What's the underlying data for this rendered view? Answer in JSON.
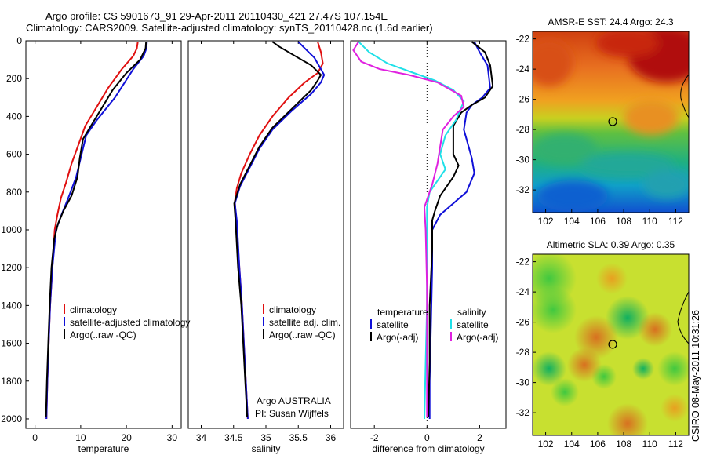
{
  "header": {
    "line1": "Argo profile: CS 5901673_91 29-Apr-2011 20110430_421 27.47S 107.154E",
    "line2": "Climatology: CARS2009. Satellite-adjusted climatology: synTS_20110428.nc (1.6d earlier)"
  },
  "side_label": "CSIRO 08-May-2011 10:31:26",
  "colors": {
    "climatology": "#e01010",
    "satellite": "#1010d8",
    "argo": "#000000",
    "satellite_diff": "#20e0e8",
    "argo_diff": "#e020e0"
  },
  "chart_data": [
    {
      "type": "line",
      "xlabel": "temperature",
      "ylabel": "",
      "xlim": [
        -2,
        32
      ],
      "ylim": [
        2050,
        0
      ],
      "xticks": [
        0,
        10,
        20,
        30
      ],
      "yticks": [
        0,
        200,
        400,
        600,
        800,
        1000,
        1200,
        1400,
        1600,
        1800,
        2000
      ],
      "legend": [
        "climatology",
        "satellite-adjusted climatology",
        "Argo(..raw -QC)"
      ],
      "legend_position": "bottom-right",
      "series": [
        {
          "name": "climatology",
          "color": "#e01010",
          "points": [
            [
              22.5,
              5
            ],
            [
              22.3,
              40
            ],
            [
              21.5,
              80
            ],
            [
              19,
              150
            ],
            [
              16,
              250
            ],
            [
              13.5,
              350
            ],
            [
              11,
              450
            ],
            [
              9.5,
              550
            ],
            [
              8,
              650
            ],
            [
              6.8,
              750
            ],
            [
              5.7,
              830
            ],
            [
              4.9,
              920
            ],
            [
              4.3,
              1000
            ],
            [
              3.8,
              1200
            ],
            [
              3.3,
              1400
            ],
            [
              3,
              1600
            ],
            [
              2.7,
              1800
            ],
            [
              2.5,
              2000
            ]
          ]
        },
        {
          "name": "satellite-adjusted climatology",
          "color": "#1010d8",
          "points": [
            [
              24.5,
              5
            ],
            [
              24.4,
              40
            ],
            [
              23.8,
              80
            ],
            [
              21.5,
              150
            ],
            [
              17.5,
              300
            ],
            [
              13.5,
              420
            ],
            [
              11.2,
              500
            ],
            [
              10,
              620
            ],
            [
              9,
              720
            ],
            [
              7.3,
              830
            ],
            [
              5.8,
              920
            ],
            [
              4.6,
              1000
            ],
            [
              3.8,
              1200
            ],
            [
              3.3,
              1400
            ],
            [
              3,
              1600
            ],
            [
              2.7,
              1800
            ],
            [
              2.5,
              2000
            ]
          ]
        },
        {
          "name": "Argo(..raw -QC)",
          "color": "#000000",
          "points": [
            [
              24.3,
              5
            ],
            [
              24.2,
              40
            ],
            [
              23,
              100
            ],
            [
              20,
              170
            ],
            [
              17,
              260
            ],
            [
              14.5,
              360
            ],
            [
              12,
              460
            ],
            [
              10.5,
              520
            ],
            [
              9.8,
              620
            ],
            [
              9.3,
              720
            ],
            [
              8,
              820
            ],
            [
              6.2,
              900
            ],
            [
              5,
              970
            ],
            [
              4.2,
              1050
            ],
            [
              3.6,
              1200
            ],
            [
              3.2,
              1400
            ],
            [
              2.9,
              1600
            ],
            [
              2.6,
              1800
            ],
            [
              2.4,
              1990
            ]
          ]
        }
      ]
    },
    {
      "type": "line",
      "xlabel": "salinity",
      "ylabel": "",
      "xlim": [
        33.8,
        36.2
      ],
      "ylim": [
        2050,
        0
      ],
      "xticks": [
        34,
        34.5,
        35,
        35.5,
        36
      ],
      "yticks": [],
      "legend": [
        "climatology",
        "satellite adj. clim.",
        "Argo(..raw -QC)"
      ],
      "legend_position": "bottom-right",
      "annotations": [
        "Argo AUSTRALIA",
        "PI: Susan Wijffels"
      ],
      "series": [
        {
          "name": "climatology",
          "color": "#e01010",
          "points": [
            [
              35.8,
              5
            ],
            [
              35.85,
              60
            ],
            [
              35.88,
              120
            ],
            [
              35.8,
              170
            ],
            [
              35.6,
              220
            ],
            [
              35.35,
              300
            ],
            [
              35.1,
              400
            ],
            [
              34.9,
              500
            ],
            [
              34.75,
              600
            ],
            [
              34.62,
              700
            ],
            [
              34.55,
              780
            ],
            [
              34.52,
              850
            ],
            [
              34.53,
              900
            ],
            [
              34.55,
              1000
            ],
            [
              34.59,
              1200
            ],
            [
              34.63,
              1400
            ],
            [
              34.66,
              1600
            ],
            [
              34.69,
              1800
            ],
            [
              34.72,
              2000
            ]
          ]
        },
        {
          "name": "satellite adj. clim.",
          "color": "#1010d8",
          "points": [
            [
              35.5,
              5
            ],
            [
              35.6,
              40
            ],
            [
              35.75,
              90
            ],
            [
              35.85,
              150
            ],
            [
              35.9,
              180
            ],
            [
              35.85,
              220
            ],
            [
              35.7,
              280
            ],
            [
              35.4,
              370
            ],
            [
              35.1,
              470
            ],
            [
              34.9,
              570
            ],
            [
              34.75,
              670
            ],
            [
              34.6,
              770
            ],
            [
              34.52,
              860
            ],
            [
              34.55,
              950
            ],
            [
              34.59,
              1200
            ],
            [
              34.63,
              1400
            ],
            [
              34.66,
              1600
            ],
            [
              34.69,
              1800
            ],
            [
              34.72,
              2000
            ]
          ]
        },
        {
          "name": "Argo(..raw -QC)",
          "color": "#000000",
          "points": [
            [
              35.1,
              5
            ],
            [
              35.2,
              30
            ],
            [
              35.45,
              80
            ],
            [
              35.7,
              130
            ],
            [
              35.85,
              180
            ],
            [
              35.8,
              210
            ],
            [
              35.7,
              260
            ],
            [
              35.4,
              360
            ],
            [
              35.1,
              460
            ],
            [
              34.9,
              560
            ],
            [
              34.75,
              660
            ],
            [
              34.6,
              760
            ],
            [
              34.51,
              860
            ],
            [
              34.53,
              950
            ],
            [
              34.57,
              1200
            ],
            [
              34.62,
              1400
            ],
            [
              34.65,
              1600
            ],
            [
              34.68,
              1800
            ],
            [
              34.71,
              1990
            ]
          ]
        }
      ]
    },
    {
      "type": "line",
      "xlabel": "difference from climatology",
      "ylabel": "",
      "xlim": [
        -2.9,
        3
      ],
      "ylim": [
        2050,
        0
      ],
      "xticks": [
        -2,
        0,
        2
      ],
      "yticks": [],
      "legend": [
        "temperature",
        "satellite",
        "Argo(-adj)",
        "salinity",
        "satellite",
        "Argo(-adj)"
      ],
      "legend_position": "bottom",
      "series": [
        {
          "name": "temperature satellite",
          "color": "#1010d8",
          "points": [
            [
              1.8,
              5
            ],
            [
              2.0,
              60
            ],
            [
              2.3,
              130
            ],
            [
              2.4,
              250
            ],
            [
              2.1,
              300
            ],
            [
              1.7,
              340
            ],
            [
              1.5,
              380
            ],
            [
              1.4,
              470
            ],
            [
              1.5,
              520
            ],
            [
              1.7,
              620
            ],
            [
              1.8,
              700
            ],
            [
              1.5,
              800
            ],
            [
              1.0,
              860
            ],
            [
              0.5,
              920
            ],
            [
              0.2,
              1000
            ],
            [
              0.2,
              1200
            ],
            [
              0.15,
              1500
            ],
            [
              0.1,
              1800
            ],
            [
              0.1,
              2000
            ]
          ]
        },
        {
          "name": "temperature Argo(-adj)",
          "color": "#000000",
          "points": [
            [
              1.7,
              5
            ],
            [
              2.2,
              60
            ],
            [
              2.4,
              130
            ],
            [
              2.5,
              240
            ],
            [
              2.2,
              300
            ],
            [
              1.7,
              340
            ],
            [
              1.3,
              380
            ],
            [
              1.0,
              450
            ],
            [
              1.0,
              600
            ],
            [
              1.2,
              660
            ],
            [
              1.0,
              720
            ],
            [
              0.5,
              820
            ],
            [
              0.3,
              900
            ],
            [
              0.2,
              950
            ],
            [
              0.2,
              1100
            ],
            [
              0.1,
              1400
            ],
            [
              0.1,
              1700
            ],
            [
              0.05,
              1990
            ]
          ]
        },
        {
          "name": "salinity satellite",
          "color": "#20e0e8",
          "points": [
            [
              -2.6,
              5
            ],
            [
              -2.2,
              60
            ],
            [
              -1.5,
              120
            ],
            [
              -0.5,
              170
            ],
            [
              0.3,
              210
            ],
            [
              1.0,
              260
            ],
            [
              1.4,
              320
            ],
            [
              1.1,
              420
            ],
            [
              0.7,
              500
            ],
            [
              0.5,
              600
            ],
            [
              0.7,
              680
            ],
            [
              0.4,
              740
            ],
            [
              0.1,
              800
            ],
            [
              0.0,
              880
            ],
            [
              0.0,
              1100
            ],
            [
              0.0,
              1400
            ],
            [
              -0.05,
              1700
            ],
            [
              -0.1,
              2000
            ]
          ]
        },
        {
          "name": "salinity Argo(-adj)",
          "color": "#e020e0",
          "points": [
            [
              -2.6,
              5
            ],
            [
              -2.8,
              50
            ],
            [
              -2.5,
              110
            ],
            [
              -1.8,
              150
            ],
            [
              -0.7,
              180
            ],
            [
              0.4,
              220
            ],
            [
              1.3,
              290
            ],
            [
              1.4,
              350
            ],
            [
              1.0,
              400
            ],
            [
              0.6,
              470
            ],
            [
              0.5,
              560
            ],
            [
              0.4,
              650
            ],
            [
              0.2,
              760
            ],
            [
              -0.1,
              880
            ],
            [
              -0.05,
              1000
            ],
            [
              0.0,
              1300
            ],
            [
              0.0,
              1600
            ],
            [
              0.0,
              1990
            ]
          ]
        }
      ]
    }
  ],
  "maps": [
    {
      "title": "AMSR-E SST: 24.4 Argo: 24.3",
      "xticks": [
        102,
        104,
        106,
        108,
        110,
        112
      ],
      "yticks": [
        -22,
        -24,
        -26,
        -28,
        -30,
        -32
      ],
      "xlim": [
        101,
        113
      ],
      "ylim": [
        -33.5,
        -21.5
      ],
      "marker": [
        107.154,
        -27.47
      ]
    },
    {
      "title": "Altimetric SLA: 0.39 Argo: 0.35",
      "xticks": [
        102,
        104,
        106,
        108,
        110,
        112
      ],
      "yticks": [
        -22,
        -24,
        -26,
        -28,
        -30,
        -32
      ],
      "xlim": [
        101,
        113
      ],
      "ylim": [
        -33.5,
        -21.5
      ],
      "marker": [
        107.154,
        -27.47
      ]
    }
  ]
}
